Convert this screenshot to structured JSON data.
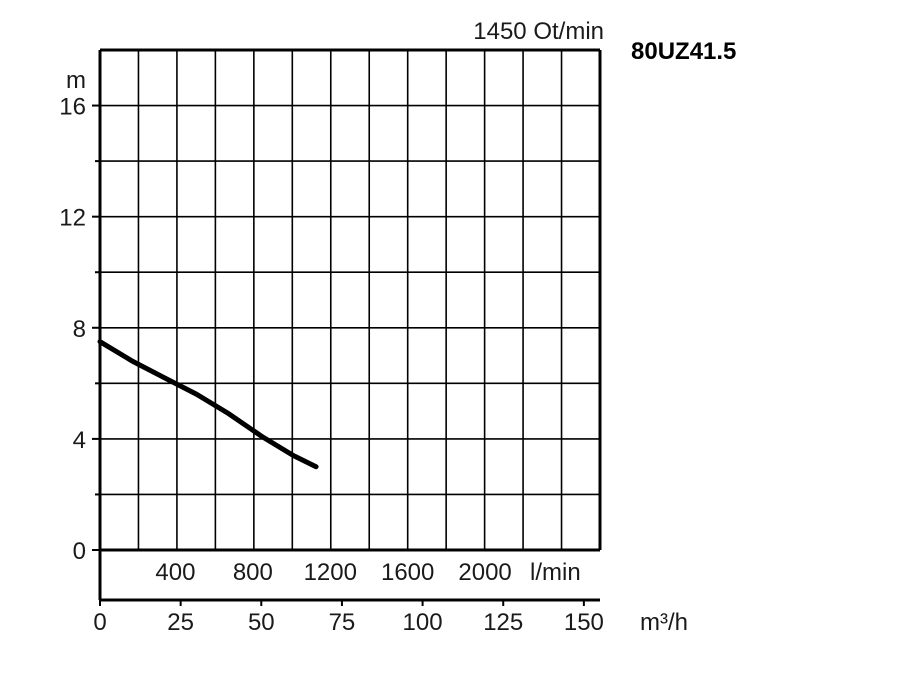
{
  "chart_data": {
    "type": "line",
    "title": "1450 Ot/min",
    "model": "80UZ41.5",
    "ylabel": "m",
    "ylim": [
      0,
      18
    ],
    "yticks": [
      0,
      4,
      8,
      12,
      16
    ],
    "xlim_m3h": [
      0,
      155
    ],
    "x_m3h_ticks": [
      0,
      25,
      50,
      75,
      100,
      125,
      150
    ],
    "x_m3h_label": "m³/h",
    "x_lmin_ticks": [
      400,
      800,
      1200,
      1600,
      2000
    ],
    "x_lmin_label": "l/min",
    "grid": true,
    "series": [
      {
        "x": [
          0,
          10,
          20,
          30,
          40,
          50,
          60,
          67
        ],
        "y": [
          7.5,
          6.8,
          6.2,
          5.6,
          4.9,
          4.1,
          3.4,
          3.0
        ]
      }
    ]
  }
}
